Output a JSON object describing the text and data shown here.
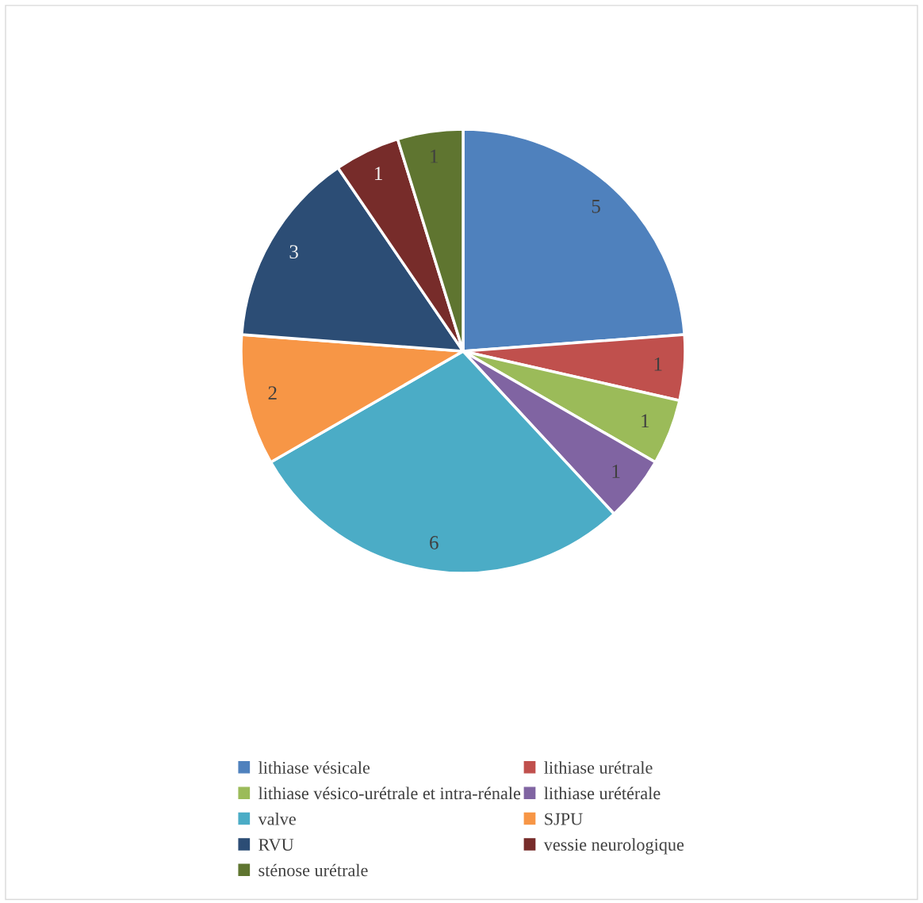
{
  "chart_data": {
    "type": "pie",
    "categories": [
      "lithiase vésicale",
      "lithiase urétrale",
      "lithiase vésico-urétrale et intra-rénale",
      "lithiase urétérale",
      "valve",
      "SJPU",
      "RVU",
      "vessie neurologique",
      "sténose urétrale"
    ],
    "values": [
      5,
      1,
      1,
      1,
      6,
      2,
      3,
      1,
      1
    ],
    "colors": [
      "#4f81bd",
      "#c0504d",
      "#9bbb59",
      "#8064a2",
      "#4bacc6",
      "#f79646",
      "#2c4d75",
      "#772c2a",
      "#5f7530"
    ],
    "data_labels": true,
    "legend": "bottom"
  }
}
